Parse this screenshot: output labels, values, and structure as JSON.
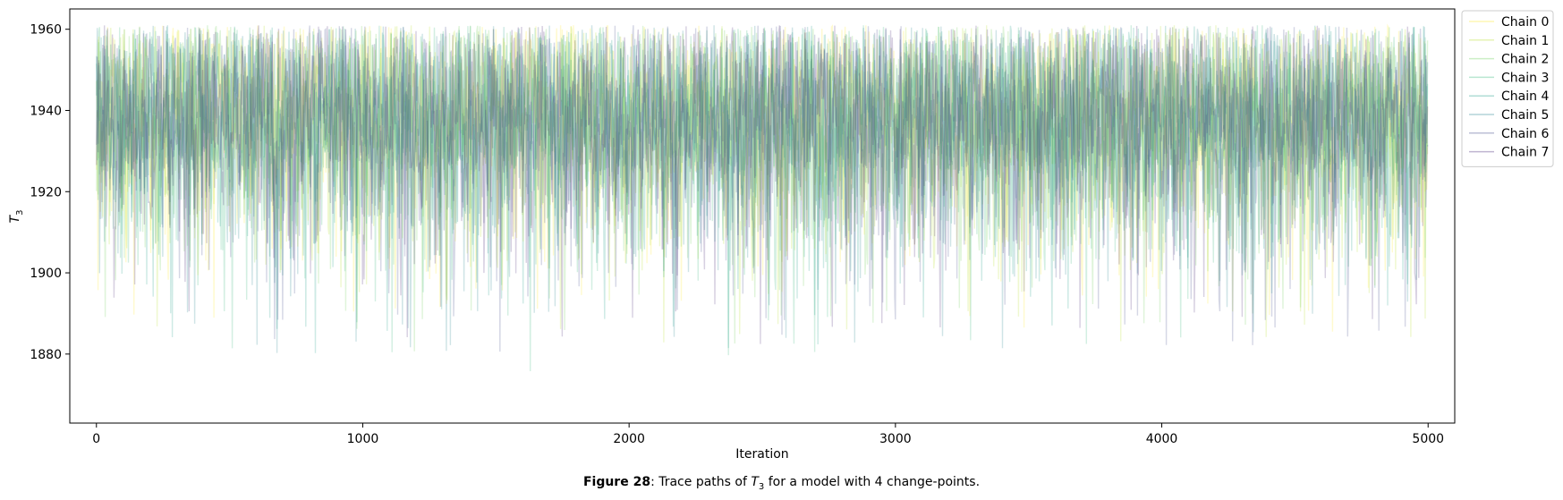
{
  "caption": {
    "label": "Figure 28",
    "text_before": ": Trace paths of ",
    "symbol": "T",
    "symbol_sub": "3",
    "text_after": " for a model with 4 change-points."
  },
  "chart_data": {
    "type": "line",
    "title": "",
    "xlabel": "Iteration",
    "ylabel": "T",
    "ylabel_sub": "3",
    "xlim": [
      -100,
      5100
    ],
    "ylim": [
      1863,
      1965
    ],
    "xticks": [
      0,
      1000,
      2000,
      3000,
      4000,
      5000
    ],
    "yticks": [
      1880,
      1900,
      1920,
      1940,
      1960
    ],
    "legend_position": "outside-top-right",
    "grid": false,
    "n_iterations": 5000,
    "y_range_observed": [
      1868,
      1961
    ],
    "central_band": [
      1925,
      1948
    ],
    "series": [
      {
        "name": "Chain 0",
        "color": "#fde725"
      },
      {
        "name": "Chain 1",
        "color": "#b5de2b"
      },
      {
        "name": "Chain 2",
        "color": "#6ece58"
      },
      {
        "name": "Chain 3",
        "color": "#35b779"
      },
      {
        "name": "Chain 4",
        "color": "#1f9e89"
      },
      {
        "name": "Chain 5",
        "color": "#26828e"
      },
      {
        "name": "Chain 6",
        "color": "#3e4989"
      },
      {
        "name": "Chain 7",
        "color": "#482878"
      }
    ]
  }
}
